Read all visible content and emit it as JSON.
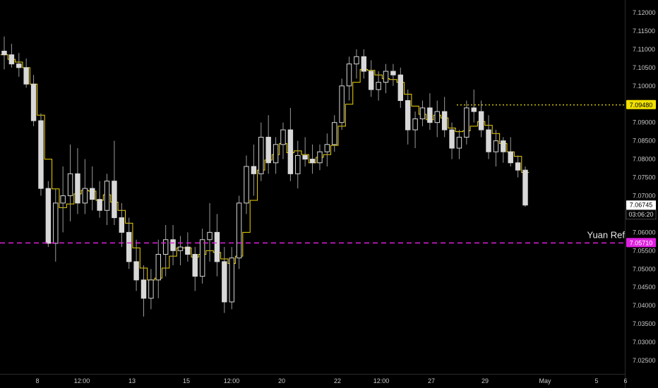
{
  "chart_data": {
    "type": "candlestick",
    "ylim": [
      7.02,
      7.125
    ],
    "y_ticks": [
      "7.12000",
      "7.11500",
      "7.11000",
      "7.10500",
      "7.10000",
      "7.09500",
      "7.09000",
      "7.08500",
      "7.08000",
      "7.07500",
      "7.07000",
      "7.06500",
      "7.06000",
      "7.05500",
      "7.05000",
      "7.04500",
      "7.04000",
      "7.03500",
      "7.03000",
      "7.02500"
    ],
    "x_ticks": [
      "8",
      "12:00",
      "13",
      "15",
      "12:00",
      "20",
      "22",
      "12:00",
      "27",
      "29",
      "May",
      "5",
      "6"
    ],
    "candles": [
      [
        7.1095,
        7.1135,
        7.1045,
        7.1085
      ],
      [
        7.1085,
        7.1115,
        7.105,
        7.106
      ],
      [
        7.106,
        7.109,
        7.1025,
        7.105
      ],
      [
        7.105,
        7.1075,
        7.0995,
        7.1005
      ],
      [
        7.1005,
        7.103,
        7.089,
        7.0905
      ],
      [
        7.0905,
        7.0925,
        7.07,
        7.072
      ],
      [
        7.072,
        7.074,
        7.056,
        7.057
      ],
      [
        7.057,
        7.072,
        7.052,
        7.068
      ],
      [
        7.068,
        7.078,
        7.06,
        7.07
      ],
      [
        7.07,
        7.084,
        7.063,
        7.076
      ],
      [
        7.076,
        7.083,
        7.065,
        7.068
      ],
      [
        7.068,
        7.08,
        7.065,
        7.072
      ],
      [
        7.072,
        7.078,
        7.066,
        7.069
      ],
      [
        7.069,
        7.074,
        7.064,
        7.066
      ],
      [
        7.066,
        7.076,
        7.062,
        7.074
      ],
      [
        7.074,
        7.085,
        7.062,
        7.064
      ],
      [
        7.064,
        7.068,
        7.056,
        7.06
      ],
      [
        7.06,
        7.064,
        7.05,
        7.052
      ],
      [
        7.052,
        7.058,
        7.044,
        7.047
      ],
      [
        7.047,
        7.051,
        7.037,
        7.042
      ],
      [
        7.042,
        7.05,
        7.039,
        7.047
      ],
      [
        7.047,
        7.058,
        7.042,
        7.054
      ],
      [
        7.054,
        7.062,
        7.048,
        7.058
      ],
      [
        7.058,
        7.062,
        7.051,
        7.055
      ],
      [
        7.055,
        7.059,
        7.051,
        7.056
      ],
      [
        7.056,
        7.06,
        7.052,
        7.054
      ],
      [
        7.054,
        7.056,
        7.044,
        7.048
      ],
      [
        7.048,
        7.061,
        7.046,
        7.058
      ],
      [
        7.058,
        7.068,
        7.052,
        7.06
      ],
      [
        7.06,
        7.065,
        7.048,
        7.052
      ],
      [
        7.052,
        7.056,
        7.038,
        7.041
      ],
      [
        7.041,
        7.056,
        7.039,
        7.053
      ],
      [
        7.053,
        7.07,
        7.05,
        7.068
      ],
      [
        7.068,
        7.081,
        7.065,
        7.078
      ],
      [
        7.078,
        7.084,
        7.07,
        7.076
      ],
      [
        7.076,
        7.09,
        7.074,
        7.086
      ],
      [
        7.086,
        7.092,
        7.076,
        7.079
      ],
      [
        7.079,
        7.086,
        7.076,
        7.084
      ],
      [
        7.084,
        7.09,
        7.08,
        7.088
      ],
      [
        7.088,
        7.094,
        7.074,
        7.076
      ],
      [
        7.076,
        7.085,
        7.072,
        7.081
      ],
      [
        7.081,
        7.086,
        7.078,
        7.08
      ],
      [
        7.08,
        7.084,
        7.076,
        7.079
      ],
      [
        7.079,
        7.084,
        7.077,
        7.082
      ],
      [
        7.082,
        7.087,
        7.078,
        7.084
      ],
      [
        7.084,
        7.092,
        7.082,
        7.09
      ],
      [
        7.09,
        7.102,
        7.088,
        7.1
      ],
      [
        7.1,
        7.108,
        7.096,
        7.106
      ],
      [
        7.106,
        7.11,
        7.102,
        7.108
      ],
      [
        7.108,
        7.11,
        7.102,
        7.104
      ],
      [
        7.104,
        7.107,
        7.097,
        7.099
      ],
      [
        7.099,
        7.104,
        7.096,
        7.101
      ],
      [
        7.101,
        7.106,
        7.098,
        7.104
      ],
      [
        7.104,
        7.106,
        7.1,
        7.103
      ],
      [
        7.103,
        7.105,
        7.094,
        7.096
      ],
      [
        7.096,
        7.099,
        7.084,
        7.088
      ],
      [
        7.088,
        7.093,
        7.083,
        7.091
      ],
      [
        7.091,
        7.096,
        7.089,
        7.094
      ],
      [
        7.094,
        7.098,
        7.088,
        7.09
      ],
      [
        7.09,
        7.096,
        7.086,
        7.093
      ],
      [
        7.093,
        7.097,
        7.086,
        7.088
      ],
      [
        7.088,
        7.09,
        7.08,
        7.083
      ],
      [
        7.083,
        7.088,
        7.08,
        7.086
      ],
      [
        7.086,
        7.096,
        7.084,
        7.094
      ],
      [
        7.094,
        7.099,
        7.09,
        7.093
      ],
      [
        7.093,
        7.096,
        7.086,
        7.088
      ],
      [
        7.088,
        7.092,
        7.08,
        7.082
      ],
      [
        7.082,
        7.088,
        7.078,
        7.085
      ],
      [
        7.085,
        7.086,
        7.079,
        7.082
      ],
      [
        7.082,
        7.086,
        7.078,
        7.079
      ],
      [
        7.079,
        7.081,
        7.075,
        7.077
      ],
      [
        7.077,
        7.078,
        7.067,
        7.06745
      ]
    ],
    "overlay_line_color": "#f0d400",
    "reference_lines": [
      {
        "label": "Yuan Ref",
        "value": 7.0571,
        "price_tag": "7.05710",
        "color": "#e020e0",
        "style": "dashed"
      },
      {
        "value": 7.0948,
        "price_tag": "7.09480",
        "color": "#f0e000",
        "style": "dotted"
      }
    ],
    "last_price": {
      "value": "7.06745",
      "countdown": "03:06:20"
    }
  }
}
